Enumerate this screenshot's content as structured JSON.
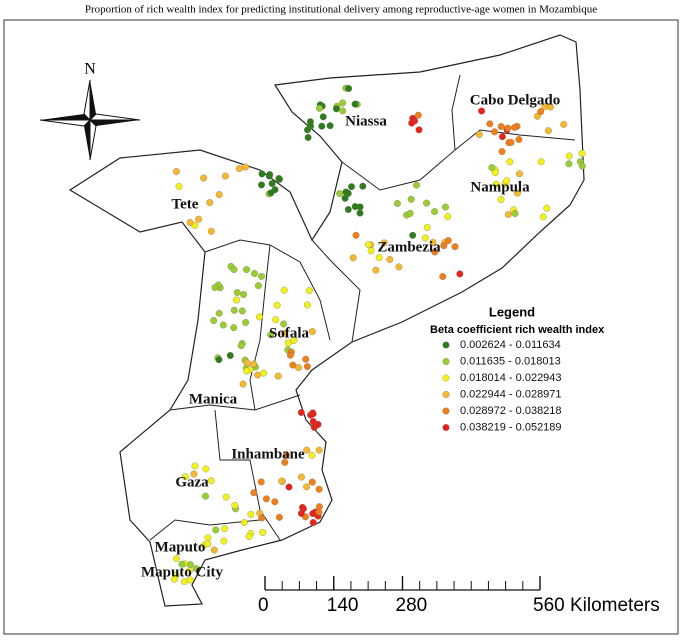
{
  "title": "Proportion of rich wealth index for predicting institutional delivery among reproductive-age women in Mozambique",
  "north_arrow": "N",
  "provinces": [
    "Niassa",
    "Cabo Delgado",
    "Nampula",
    "Tete",
    "Zambezia",
    "Sofala",
    "Manica",
    "Inhambane",
    "Gaza",
    "Maputo",
    "Maputo City"
  ],
  "legend": {
    "title": "Legend",
    "subtitle": "Beta coefficient rich wealth index",
    "items": [
      {
        "label": "0.002624 - 0.011634",
        "color": "#2e7d1a"
      },
      {
        "label": "0.011635 - 0.018013",
        "color": "#9acd32"
      },
      {
        "label": "0.018014 - 0.022943",
        "color": "#f2f21a"
      },
      {
        "label": "0.022944 - 0.028971",
        "color": "#f5b82e"
      },
      {
        "label": "0.028972 - 0.038218",
        "color": "#f07f1a"
      },
      {
        "label": "0.038219 - 0.052189",
        "color": "#e8231a"
      }
    ]
  },
  "scale_bar": {
    "ticks": [
      0,
      140,
      280,
      {
        "value": 560,
        "label": "560 Kilometers"
      }
    ]
  }
}
